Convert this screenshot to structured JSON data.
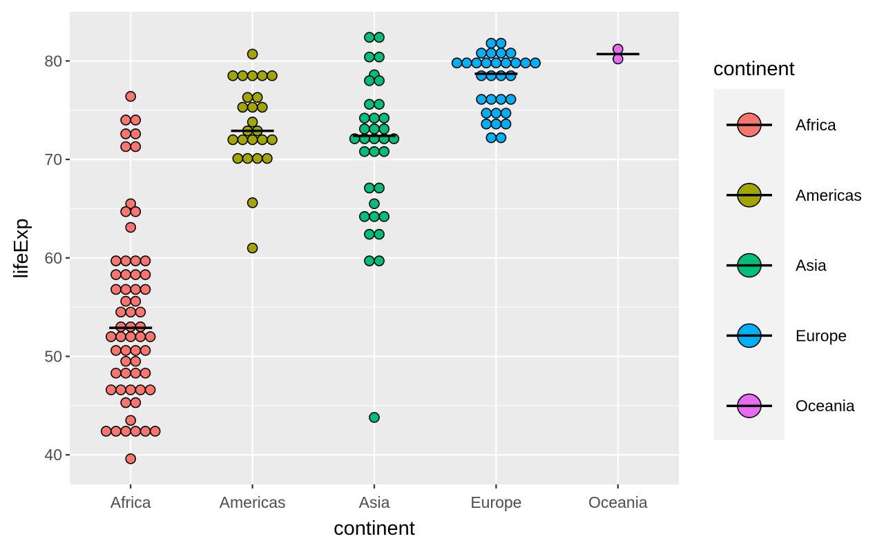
{
  "chart_data": {
    "type": "scatter",
    "subtype": "dotplot",
    "xlabel": "continent",
    "ylabel": "lifeExp",
    "categories": [
      "Africa",
      "Americas",
      "Asia",
      "Europe",
      "Oceania"
    ],
    "ylim": [
      37,
      85
    ],
    "yticks": [
      40,
      50,
      60,
      70,
      80
    ],
    "grid": true,
    "legend_position": "right",
    "legend_title": "continent",
    "series": [
      {
        "name": "Africa",
        "color": "#F8766D",
        "median": 52.9,
        "values": [
          76.4,
          74.0,
          74.0,
          72.6,
          72.6,
          71.3,
          71.3,
          65.5,
          64.7,
          64.7,
          63.1,
          59.7,
          59.7,
          59.7,
          59.7,
          58.3,
          58.3,
          58.3,
          58.3,
          56.8,
          56.8,
          56.8,
          56.8,
          55.6,
          55.6,
          54.5,
          54.5,
          54.5,
          53.0,
          53.0,
          53.0,
          52.0,
          52.0,
          52.0,
          52.0,
          52.0,
          50.6,
          50.6,
          50.6,
          50.6,
          49.5,
          49.5,
          48.3,
          48.3,
          48.3,
          48.3,
          46.6,
          46.6,
          46.6,
          46.6,
          46.6,
          45.3,
          45.3,
          43.5,
          42.4,
          42.4,
          42.4,
          42.4,
          42.4,
          42.4,
          39.6
        ]
      },
      {
        "name": "Americas",
        "color": "#A3A500",
        "median": 72.9,
        "values": [
          80.7,
          78.5,
          78.5,
          78.5,
          78.5,
          78.5,
          76.3,
          76.3,
          75.3,
          75.3,
          75.3,
          73.8,
          72.9,
          72.9,
          72.0,
          72.0,
          72.0,
          72.0,
          72.0,
          70.1,
          70.1,
          70.1,
          70.1,
          65.6,
          61.0
        ]
      },
      {
        "name": "Asia",
        "color": "#00BF7D",
        "median": 72.4,
        "values": [
          82.4,
          82.4,
          80.4,
          80.4,
          78.6,
          78.0,
          78.0,
          75.6,
          75.6,
          74.2,
          74.2,
          74.2,
          73.1,
          73.1,
          73.1,
          72.1,
          72.1,
          72.1,
          72.1,
          72.1,
          70.8,
          70.8,
          70.8,
          67.1,
          67.1,
          65.5,
          64.2,
          64.2,
          64.2,
          62.4,
          62.4,
          59.7,
          59.7,
          43.8
        ]
      },
      {
        "name": "Europe",
        "color": "#00B0F6",
        "median": 78.7,
        "values": [
          81.8,
          81.8,
          80.8,
          80.8,
          80.8,
          80.8,
          79.8,
          79.8,
          79.8,
          79.8,
          79.8,
          79.8,
          79.8,
          79.8,
          79.8,
          78.5,
          78.5,
          78.5,
          78.5,
          76.1,
          76.1,
          76.1,
          76.1,
          74.7,
          74.7,
          74.7,
          73.6,
          73.6,
          73.6,
          72.2,
          72.2
        ]
      },
      {
        "name": "Oceania",
        "color": "#E76BF3",
        "median": 80.7,
        "values": [
          81.2,
          80.2
        ]
      }
    ]
  }
}
